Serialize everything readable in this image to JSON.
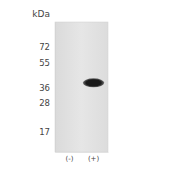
{
  "chart_data": {
    "type": "blot",
    "y_label": "kDa",
    "categories": [
      "(-)",
      "(+)"
    ],
    "values": [
      null,
      39
    ],
    "log": "y",
    "ylim": [
      12,
      110
    ],
    "yticks": [
      72,
      55,
      36,
      28,
      17
    ],
    "color": "#1a1a1a"
  }
}
